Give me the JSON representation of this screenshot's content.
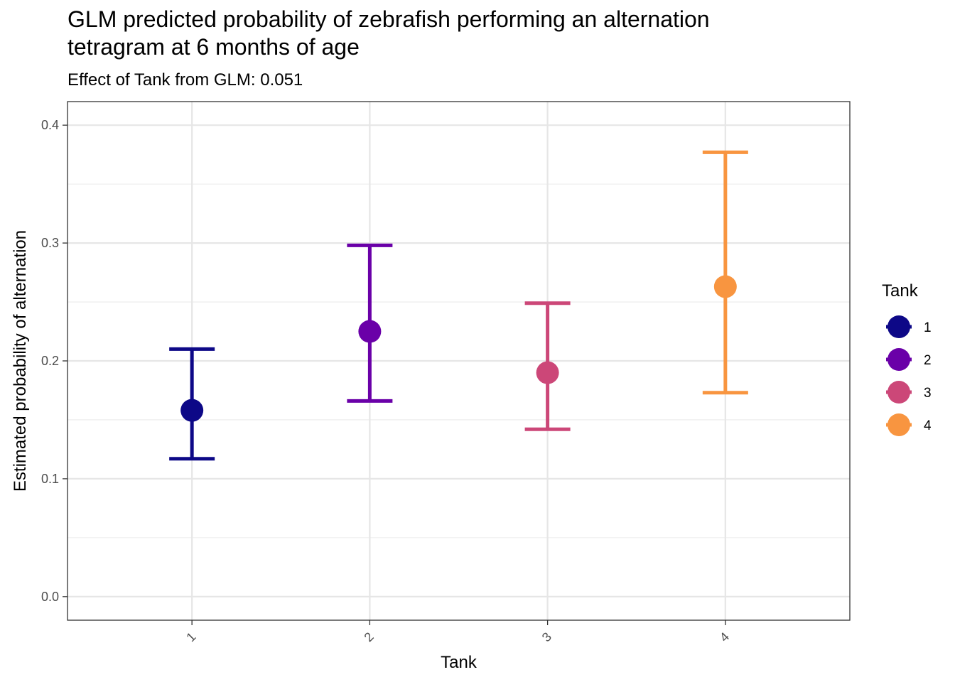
{
  "chart_data": {
    "type": "scatter",
    "title_line1": "GLM predicted probability of zebrafish performing an alternation",
    "title_line2": "tetragram at 6 months of age",
    "subtitle": "Effect of Tank from GLM: 0.051",
    "xlabel": "Tank",
    "ylabel": "Estimated probability of alternation",
    "categories": [
      "1",
      "2",
      "3",
      "4"
    ],
    "y_ticks": [
      "0.0",
      "0.1",
      "0.2",
      "0.3",
      "0.4"
    ],
    "ylim": [
      -0.02,
      0.42
    ],
    "grid": true,
    "legend": {
      "title": "Tank",
      "position": "right"
    },
    "series": [
      {
        "name": "1",
        "estimate": 0.158,
        "lower": 0.117,
        "upper": 0.21,
        "color": "#0D0887"
      },
      {
        "name": "2",
        "estimate": 0.225,
        "lower": 0.166,
        "upper": 0.298,
        "color": "#6A00A8"
      },
      {
        "name": "3",
        "estimate": 0.19,
        "lower": 0.142,
        "upper": 0.249,
        "color": "#CC4778"
      },
      {
        "name": "4",
        "estimate": 0.263,
        "lower": 0.173,
        "upper": 0.377,
        "color": "#F89540"
      }
    ]
  }
}
